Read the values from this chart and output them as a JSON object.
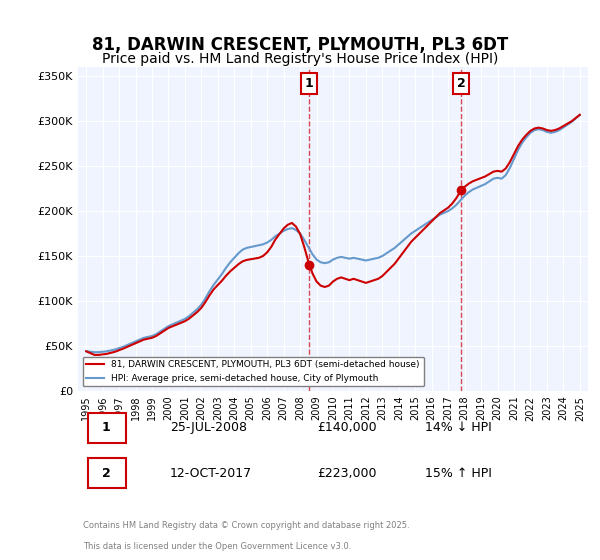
{
  "title": "81, DARWIN CRESCENT, PLYMOUTH, PL3 6DT",
  "subtitle": "Price paid vs. HM Land Registry's House Price Index (HPI)",
  "title_fontsize": 12,
  "subtitle_fontsize": 10,
  "bg_color": "#ffffff",
  "plot_bg_color": "#f0f4ff",
  "grid_color": "#ffffff",
  "ylabel_ticks": [
    "£0",
    "£50K",
    "£100K",
    "£150K",
    "£200K",
    "£250K",
    "£300K",
    "£350K"
  ],
  "ytick_vals": [
    0,
    50000,
    100000,
    150000,
    200000,
    250000,
    300000,
    350000
  ],
  "ylim": [
    0,
    360000
  ],
  "xlim_start": 1994.5,
  "xlim_end": 2025.5,
  "xtick_years": [
    1995,
    1996,
    1997,
    1998,
    1999,
    2000,
    2001,
    2002,
    2003,
    2004,
    2005,
    2006,
    2007,
    2008,
    2009,
    2010,
    2011,
    2012,
    2013,
    2014,
    2015,
    2016,
    2017,
    2018,
    2019,
    2020,
    2021,
    2022,
    2023,
    2024,
    2025
  ],
  "sale1_x": 2008.56,
  "sale1_y": 140000,
  "sale1_label": "1",
  "sale2_x": 2017.78,
  "sale2_y": 223000,
  "sale2_label": "2",
  "sale_color": "#cc0000",
  "hpi_color": "#6699cc",
  "vline_color": "#cc0000",
  "annotation_box_color": "#cc0000",
  "legend_label_red": "81, DARWIN CRESCENT, PLYMOUTH, PL3 6DT (semi-detached house)",
  "legend_label_blue": "HPI: Average price, semi-detached house, City of Plymouth",
  "footer_line1": "Contains HM Land Registry data © Crown copyright and database right 2025.",
  "footer_line2": "This data is licensed under the Open Government Licence v3.0.",
  "table_row1": [
    "1",
    "25-JUL-2008",
    "£140,000",
    "14% ↓ HPI"
  ],
  "table_row2": [
    "2",
    "12-OCT-2017",
    "£223,000",
    "15% ↑ HPI"
  ],
  "hpi_data_x": [
    1995.0,
    1995.25,
    1995.5,
    1995.75,
    1996.0,
    1996.25,
    1996.5,
    1996.75,
    1997.0,
    1997.25,
    1997.5,
    1997.75,
    1998.0,
    1998.25,
    1998.5,
    1998.75,
    1999.0,
    1999.25,
    1999.5,
    1999.75,
    2000.0,
    2000.25,
    2000.5,
    2000.75,
    2001.0,
    2001.25,
    2001.5,
    2001.75,
    2002.0,
    2002.25,
    2002.5,
    2002.75,
    2003.0,
    2003.25,
    2003.5,
    2003.75,
    2004.0,
    2004.25,
    2004.5,
    2004.75,
    2005.0,
    2005.25,
    2005.5,
    2005.75,
    2006.0,
    2006.25,
    2006.5,
    2006.75,
    2007.0,
    2007.25,
    2007.5,
    2007.75,
    2008.0,
    2008.25,
    2008.5,
    2008.75,
    2009.0,
    2009.25,
    2009.5,
    2009.75,
    2010.0,
    2010.25,
    2010.5,
    2010.75,
    2011.0,
    2011.25,
    2011.5,
    2011.75,
    2012.0,
    2012.25,
    2012.5,
    2012.75,
    2013.0,
    2013.25,
    2013.5,
    2013.75,
    2014.0,
    2014.25,
    2014.5,
    2014.75,
    2015.0,
    2015.25,
    2015.5,
    2015.75,
    2016.0,
    2016.25,
    2016.5,
    2016.75,
    2017.0,
    2017.25,
    2017.5,
    2017.75,
    2018.0,
    2018.25,
    2018.5,
    2018.75,
    2019.0,
    2019.25,
    2019.5,
    2019.75,
    2020.0,
    2020.25,
    2020.5,
    2020.75,
    2021.0,
    2021.25,
    2021.5,
    2021.75,
    2022.0,
    2022.25,
    2022.5,
    2022.75,
    2023.0,
    2023.25,
    2023.5,
    2023.75,
    2024.0,
    2024.25,
    2024.5,
    2024.75,
    2025.0
  ],
  "hpi_data_y": [
    44000,
    43500,
    43000,
    43000,
    43500,
    44000,
    45000,
    46000,
    47500,
    49000,
    51000,
    53000,
    55000,
    57000,
    59000,
    60000,
    61000,
    63000,
    66000,
    69000,
    72000,
    74000,
    76000,
    78000,
    80000,
    83000,
    87000,
    91000,
    96000,
    103000,
    111000,
    118000,
    124000,
    130000,
    137000,
    143000,
    148000,
    153000,
    157000,
    159000,
    160000,
    161000,
    162000,
    163000,
    165000,
    168000,
    172000,
    175000,
    178000,
    180000,
    181000,
    179000,
    175000,
    168000,
    160000,
    152000,
    146000,
    143000,
    142000,
    143000,
    146000,
    148000,
    149000,
    148000,
    147000,
    148000,
    147000,
    146000,
    145000,
    146000,
    147000,
    148000,
    150000,
    153000,
    156000,
    159000,
    163000,
    167000,
    171000,
    175000,
    178000,
    181000,
    184000,
    187000,
    190000,
    193000,
    196000,
    198000,
    200000,
    203000,
    207000,
    212000,
    217000,
    221000,
    224000,
    226000,
    228000,
    230000,
    233000,
    236000,
    237000,
    236000,
    240000,
    248000,
    258000,
    268000,
    276000,
    282000,
    287000,
    290000,
    291000,
    290000,
    288000,
    287000,
    288000,
    290000,
    293000,
    296000,
    299000,
    303000,
    307000
  ],
  "price_data_x": [
    1995.5,
    1997.25,
    2000.0,
    2002.75,
    2005.5,
    2008.56,
    2017.78
  ],
  "price_data_y": [
    40000,
    47000,
    70000,
    113000,
    148000,
    140000,
    223000
  ]
}
